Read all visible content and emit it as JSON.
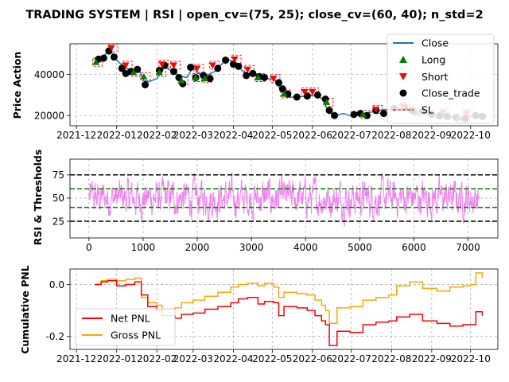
{
  "title": "TRADING SYSTEM | RSI | open_cv=(75, 25); close_cv=(60, 40); n_std=2",
  "colors": {
    "close": "#1f77b4",
    "long": "#008000",
    "short": "#ff0000",
    "close_trade": "#000000",
    "sl": "#ff0000",
    "rsi": "#ee82ee",
    "open_cv": "#000000",
    "close_cv": "#008000",
    "net_pnl": "#ff0000",
    "gross_pnl": "#ffa500",
    "grid": "#b0b0b0"
  },
  "chart_data": [
    {
      "type": "line",
      "ylabel": "Price Action",
      "grid": true,
      "legend_position": "top-right",
      "x_tick_labels": [
        "2021-12",
        "2022-01",
        "2022-02",
        "2022-03",
        "2022-04",
        "2022-05",
        "2022-06",
        "2022-07",
        "2022-08",
        "2022-09",
        "2022-10"
      ],
      "y_ticks": [
        20000,
        40000
      ],
      "ylim": [
        15000,
        55000
      ],
      "series": [
        {
          "name": "Close",
          "style": "line",
          "x": [
            "2021-12-15",
            "2021-12-20",
            "2021-12-25",
            "2021-12-28",
            "2022-01-01",
            "2022-01-06",
            "2022-01-12",
            "2022-01-18",
            "2022-01-22",
            "2022-01-26",
            "2022-02-01",
            "2022-02-07",
            "2022-02-12",
            "2022-02-18",
            "2022-02-24",
            "2022-03-01",
            "2022-03-07",
            "2022-03-13",
            "2022-03-19",
            "2022-03-25",
            "2022-03-29",
            "2022-04-03",
            "2022-04-09",
            "2022-04-15",
            "2022-04-21",
            "2022-04-27",
            "2022-05-03",
            "2022-05-08",
            "2022-05-12",
            "2022-05-20",
            "2022-05-28",
            "2022-06-05",
            "2022-06-10",
            "2022-06-13",
            "2022-06-18",
            "2022-06-25",
            "2022-07-02",
            "2022-07-08",
            "2022-07-15",
            "2022-07-22",
            "2022-07-30",
            "2022-08-08",
            "2022-08-15",
            "2022-08-22",
            "2022-08-30",
            "2022-09-06",
            "2022-09-13",
            "2022-09-20",
            "2022-09-28",
            "2022-10-05",
            "2022-10-10"
          ],
          "y": [
            47000,
            48500,
            50500,
            51000,
            47000,
            44000,
            42000,
            42500,
            37000,
            36500,
            38000,
            43500,
            42000,
            39500,
            38500,
            43500,
            39500,
            40000,
            42000,
            46500,
            47000,
            45500,
            41000,
            40000,
            39500,
            38000,
            37500,
            32000,
            29000,
            29000,
            29500,
            30000,
            27000,
            22000,
            20000,
            21000,
            19500,
            20500,
            21500,
            22500,
            23000,
            24000,
            23000,
            21500,
            20000,
            19800,
            19600,
            19200,
            19500,
            19700,
            19600
          ]
        },
        {
          "name": "Long",
          "style": "marker",
          "x": [
            "2021-12-16",
            "2022-01-14",
            "2022-01-22",
            "2022-02-03",
            "2022-02-20",
            "2022-03-03",
            "2022-03-10",
            "2022-04-20",
            "2022-05-10",
            "2022-06-12",
            "2022-07-10",
            "2022-08-20",
            "2022-09-22"
          ],
          "y": [
            46000,
            41000,
            39000,
            41000,
            37000,
            38500,
            38000,
            38500,
            30500,
            26500,
            20500,
            21500,
            19000
          ]
        },
        {
          "name": "Short",
          "style": "marker",
          "x": [
            "2021-12-28",
            "2022-01-08",
            "2022-02-05",
            "2022-02-14",
            "2022-03-04",
            "2022-03-16",
            "2022-04-02",
            "2022-04-12",
            "2022-05-02",
            "2022-05-26",
            "2022-06-01",
            "2022-07-20",
            "2022-08-10",
            "2022-09-10",
            "2022-09-28"
          ],
          "y": [
            53000,
            44500,
            45000,
            44500,
            43000,
            44500,
            47500,
            42500,
            38000,
            31500,
            31500,
            23000,
            24500,
            21500,
            21000
          ]
        },
        {
          "name": "Close_trade",
          "style": "marker",
          "x": [
            "2021-12-18",
            "2021-12-22",
            "2021-12-26",
            "2021-12-30",
            "2022-01-05",
            "2022-01-08",
            "2022-01-12",
            "2022-01-17",
            "2022-01-23",
            "2022-02-03",
            "2022-02-07",
            "2022-02-14",
            "2022-02-18",
            "2022-02-21",
            "2022-02-27",
            "2022-03-03",
            "2022-03-09",
            "2022-03-14",
            "2022-03-20",
            "2022-03-26",
            "2022-04-01",
            "2022-04-05",
            "2022-04-11",
            "2022-04-16",
            "2022-04-21",
            "2022-04-25",
            "2022-05-06",
            "2022-05-09",
            "2022-05-13",
            "2022-05-20",
            "2022-05-28",
            "2022-06-05",
            "2022-06-11",
            "2022-06-14",
            "2022-06-18",
            "2022-07-03",
            "2022-07-08",
            "2022-07-13",
            "2022-07-20",
            "2022-07-26",
            "2022-08-03",
            "2022-08-11",
            "2022-08-17",
            "2022-08-25",
            "2022-09-01",
            "2022-09-07",
            "2022-09-13",
            "2022-09-20",
            "2022-09-27",
            "2022-10-05",
            "2022-10-10"
          ],
          "y": [
            47500,
            48000,
            51500,
            48500,
            43000,
            40500,
            41500,
            42500,
            35000,
            42000,
            44500,
            41500,
            38500,
            35500,
            43500,
            38500,
            39500,
            38000,
            43000,
            47000,
            45000,
            44000,
            39500,
            40500,
            39000,
            38500,
            36000,
            33000,
            30500,
            29000,
            29500,
            30000,
            28000,
            22500,
            20000,
            20500,
            21000,
            20000,
            22500,
            21000,
            23500,
            24000,
            22500,
            22000,
            20500,
            19800,
            19500,
            19000,
            18500,
            20000,
            19500
          ]
        },
        {
          "name": "SL",
          "style": "dashed-box"
        }
      ]
    },
    {
      "type": "line",
      "ylabel": "RSI & Thresholds",
      "grid": true,
      "x_ticks": [
        0,
        1000,
        2000,
        3000,
        4000,
        5000,
        6000,
        7000
      ],
      "xlim": [
        -350,
        7550
      ],
      "y_ticks": [
        25,
        50,
        75
      ],
      "ylim": [
        7,
        92
      ],
      "thresholds": [
        {
          "value": 75,
          "role": "open_cv"
        },
        {
          "value": 25,
          "role": "open_cv"
        },
        {
          "value": 60,
          "role": "close_cv"
        },
        {
          "value": 40,
          "role": "close_cv"
        }
      ],
      "rsi_range": {
        "x_min": 0,
        "x_max": 7200,
        "y_min": 10,
        "y_max": 90
      }
    },
    {
      "type": "line",
      "ylabel": "Cumulative PNL",
      "grid": true,
      "legend_position": "lower-left",
      "x_tick_labels": [
        "2021-12",
        "2022-01",
        "2022-02",
        "2022-03",
        "2022-04",
        "2022-05",
        "2022-06",
        "2022-07",
        "2022-08",
        "2022-09",
        "2022-10"
      ],
      "y_ticks": [
        0.0,
        -0.2
      ],
      "ylim": [
        -0.25,
        0.06
      ],
      "series": [
        {
          "name": "Net PNL",
          "x": [
            "2021-12-15",
            "2021-12-20",
            "2021-12-25",
            "2022-01-01",
            "2022-01-08",
            "2022-01-15",
            "2022-01-20",
            "2022-01-25",
            "2022-02-01",
            "2022-02-05",
            "2022-02-15",
            "2022-02-20",
            "2022-03-01",
            "2022-03-10",
            "2022-03-20",
            "2022-03-30",
            "2022-04-05",
            "2022-04-12",
            "2022-04-20",
            "2022-04-25",
            "2022-05-02",
            "2022-05-06",
            "2022-05-10",
            "2022-05-20",
            "2022-05-28",
            "2022-06-03",
            "2022-06-08",
            "2022-06-11",
            "2022-06-14",
            "2022-06-20",
            "2022-06-30",
            "2022-07-10",
            "2022-07-20",
            "2022-07-30",
            "2022-08-05",
            "2022-08-15",
            "2022-08-25",
            "2022-09-05",
            "2022-09-15",
            "2022-09-25",
            "2022-10-01",
            "2022-10-05",
            "2022-10-10"
          ],
          "y": [
            0.0,
            0.01,
            0.015,
            -0.005,
            0.0,
            0.01,
            -0.04,
            -0.085,
            -0.1,
            -0.12,
            -0.13,
            -0.115,
            -0.11,
            -0.095,
            -0.085,
            -0.07,
            -0.055,
            -0.05,
            -0.075,
            -0.065,
            -0.07,
            -0.12,
            -0.085,
            -0.09,
            -0.1,
            -0.12,
            -0.14,
            -0.155,
            -0.235,
            -0.18,
            -0.185,
            -0.155,
            -0.145,
            -0.14,
            -0.125,
            -0.115,
            -0.14,
            -0.15,
            -0.16,
            -0.155,
            -0.155,
            -0.105,
            -0.12
          ]
        },
        {
          "name": "Gross PNL",
          "x": [
            "2021-12-15",
            "2021-12-20",
            "2021-12-25",
            "2022-01-01",
            "2022-01-08",
            "2022-01-15",
            "2022-01-20",
            "2022-01-25",
            "2022-02-01",
            "2022-02-05",
            "2022-02-15",
            "2022-02-20",
            "2022-03-01",
            "2022-03-10",
            "2022-03-20",
            "2022-03-30",
            "2022-04-05",
            "2022-04-12",
            "2022-04-20",
            "2022-04-25",
            "2022-05-02",
            "2022-05-06",
            "2022-05-10",
            "2022-05-20",
            "2022-05-28",
            "2022-06-03",
            "2022-06-08",
            "2022-06-11",
            "2022-06-14",
            "2022-06-20",
            "2022-06-30",
            "2022-07-10",
            "2022-07-20",
            "2022-07-30",
            "2022-08-05",
            "2022-08-15",
            "2022-08-25",
            "2022-09-05",
            "2022-09-15",
            "2022-09-25",
            "2022-10-01",
            "2022-10-05",
            "2022-10-10"
          ],
          "y": [
            0.0,
            0.015,
            0.02,
            0.015,
            0.02,
            0.025,
            -0.05,
            -0.07,
            -0.08,
            -0.095,
            -0.09,
            -0.07,
            -0.06,
            -0.045,
            -0.03,
            -0.01,
            0.0,
            0.005,
            -0.005,
            0.005,
            -0.01,
            -0.05,
            -0.03,
            -0.035,
            -0.04,
            -0.06,
            -0.08,
            -0.1,
            -0.15,
            -0.09,
            -0.085,
            -0.06,
            -0.05,
            -0.04,
            -0.005,
            0.01,
            -0.015,
            -0.025,
            -0.01,
            -0.005,
            0.0,
            0.045,
            0.025
          ]
        }
      ]
    }
  ]
}
